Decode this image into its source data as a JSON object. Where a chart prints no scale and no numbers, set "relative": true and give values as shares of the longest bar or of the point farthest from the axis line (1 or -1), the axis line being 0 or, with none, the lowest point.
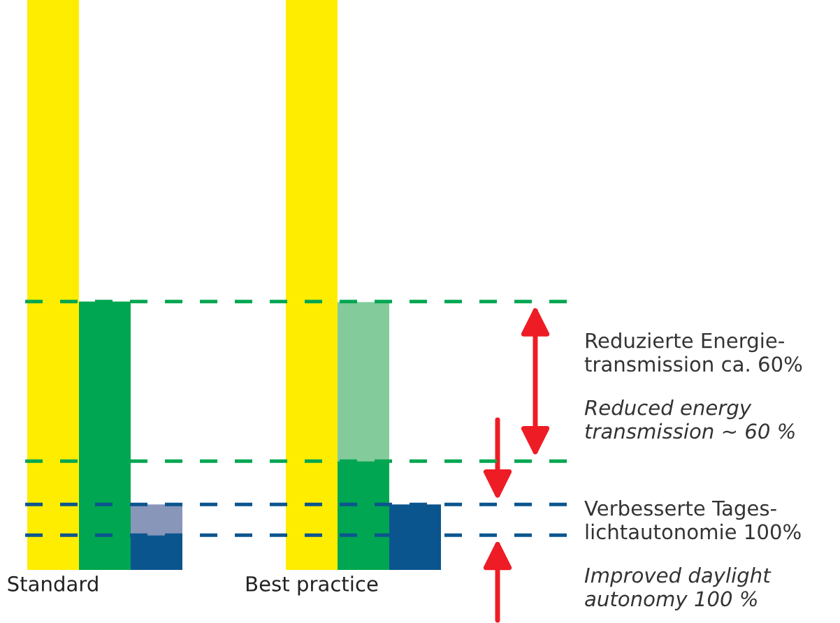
{
  "chart_data": {
    "type": "bar",
    "relative": true,
    "stacked": true,
    "categories": [
      "Standard",
      null,
      null,
      null,
      null,
      "Best practice",
      null,
      null
    ],
    "series": [
      {
        "colors": [
          "#ffed00",
          "#00a651",
          "#0b558e",
          null,
          null,
          "#ffed00",
          "#00a651",
          "#0b558e"
        ],
        "values": [
          1,
          0.471,
          0.061,
          null,
          null,
          1,
          0.191,
          0.115
        ]
      },
      {
        "colors": [
          null,
          null,
          "#8896ba",
          null,
          null,
          null,
          "#84cb9c",
          null
        ],
        "values": [
          null,
          null,
          0.054,
          null,
          null,
          null,
          0.279,
          null
        ]
      }
    ],
    "ref_lines": [
      {
        "axis": "y",
        "value": 0.471,
        "color": "#00a651",
        "line_style": "dashed"
      },
      {
        "axis": "y",
        "value": 0.191,
        "color": "#00a651",
        "line_style": "dashed"
      },
      {
        "axis": "y",
        "value": 0.115,
        "color": "#0b558e",
        "line_style": "dashed"
      },
      {
        "axis": "y",
        "value": 0.061,
        "color": "#0b558e",
        "line_style": "dashed"
      }
    ],
    "annotations": [
      "Reduzierte Energie-\ntransmission ca. 60%",
      "Reduced energy\ntransmission ∼ 60 %",
      "Verbesserte Tages-\nlichtautonomie 100%",
      "Improved daylight\nautonomy 100 %"
    ],
    "legend": false
  }
}
